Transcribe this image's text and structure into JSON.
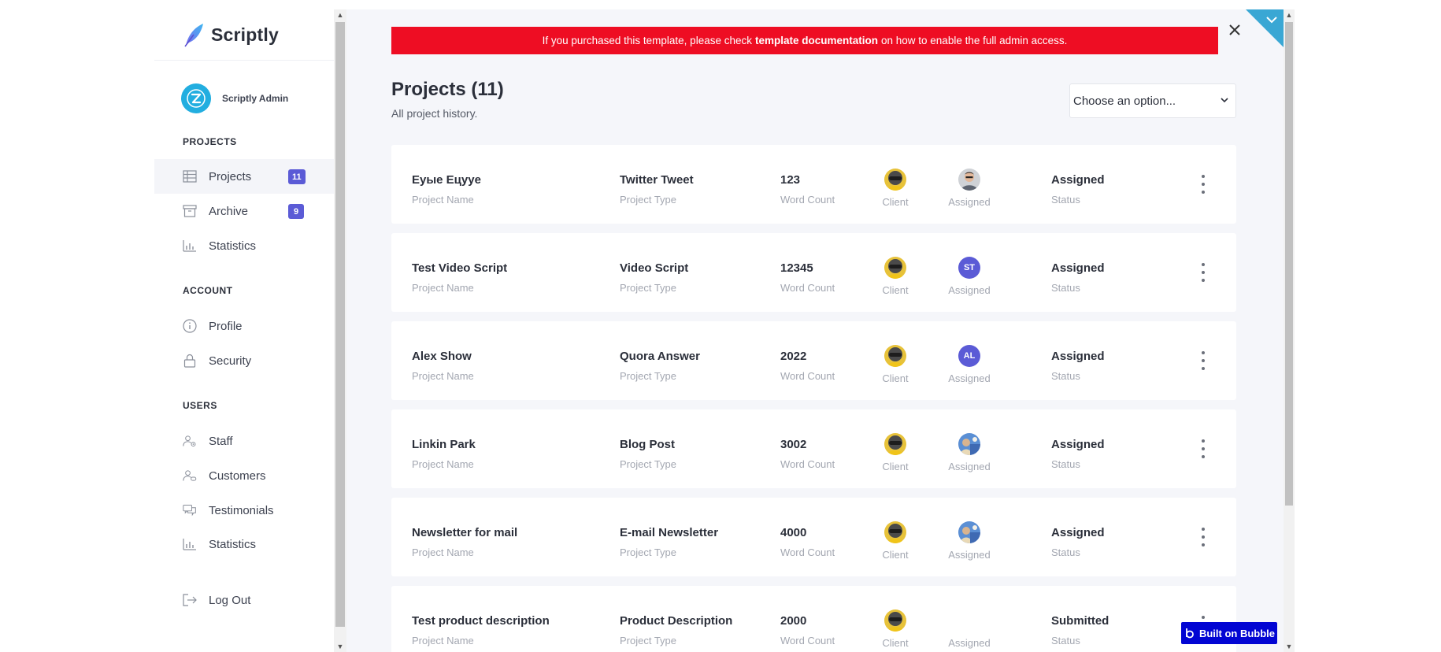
{
  "app": {
    "name": "Scriptly"
  },
  "user": {
    "name": "Scriptly Admin"
  },
  "sidebar": {
    "sections": [
      {
        "title": "PROJECTS",
        "items": [
          {
            "label": "Projects",
            "icon": "table-icon",
            "badge": "11",
            "active": true
          },
          {
            "label": "Archive",
            "icon": "archive-icon",
            "badge": "9"
          },
          {
            "label": "Statistics",
            "icon": "bar-chart-icon"
          }
        ]
      },
      {
        "title": "ACCOUNT",
        "items": [
          {
            "label": "Profile",
            "icon": "info-icon"
          },
          {
            "label": "Security",
            "icon": "lock-icon"
          }
        ]
      },
      {
        "title": "USERS",
        "items": [
          {
            "label": "Staff",
            "icon": "staff-icon"
          },
          {
            "label": "Customers",
            "icon": "customers-icon"
          },
          {
            "label": "Testimonials",
            "icon": "chat-icon"
          },
          {
            "label": "Statistics",
            "icon": "bar-chart-icon"
          }
        ]
      }
    ],
    "logout_label": "Log Out"
  },
  "alert": {
    "text_before": "If you purchased this template, please check",
    "link_text": "template documentation",
    "text_after": "on how to enable the full admin access."
  },
  "header": {
    "title": "Projects (11)",
    "subtitle": "All project history.",
    "select_placeholder": "Choose an option..."
  },
  "labels": {
    "project_name": "Project Name",
    "project_type": "Project Type",
    "word_count": "Word Count",
    "client": "Client",
    "assigned": "Assigned",
    "status": "Status"
  },
  "projects": [
    {
      "name": "Еуые Ецуye",
      "type": "Twitter Tweet",
      "words": "123",
      "assigned_initials": "",
      "assigned_kind": "photo-man",
      "status": "Assigned"
    },
    {
      "name": "Test Video Script",
      "type": "Video Script",
      "words": "12345",
      "assigned_initials": "ST",
      "assigned_kind": "initials",
      "status": "Assigned"
    },
    {
      "name": "Alex Show",
      "type": "Quora Answer",
      "words": "2022",
      "assigned_initials": "AL",
      "assigned_kind": "initials",
      "status": "Assigned"
    },
    {
      "name": "Linkin Park",
      "type": "Blog Post",
      "words": "3002",
      "assigned_initials": "",
      "assigned_kind": "photo-landscape",
      "status": "Assigned"
    },
    {
      "name": "Newsletter for mail",
      "type": "E-mail Newsletter",
      "words": "4000",
      "assigned_initials": "",
      "assigned_kind": "photo-landscape",
      "status": "Assigned"
    },
    {
      "name": "Test product description",
      "type": "Product Description",
      "words": "2000",
      "assigned_initials": "",
      "assigned_kind": "none",
      "status": "Submitted"
    }
  ],
  "bubble_badge": {
    "label": "Built on Bubble"
  },
  "colors": {
    "accent": "#5b5bd6",
    "alert": "#ee0d23",
    "avatar_blue": "#22aee0",
    "bubble": "#0205d3"
  }
}
